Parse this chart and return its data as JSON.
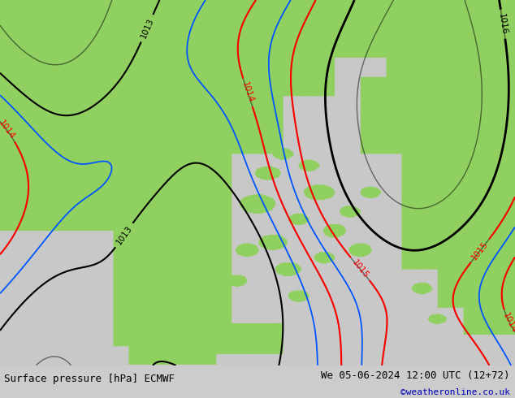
{
  "title_left": "Surface pressure [hPa] ECMWF",
  "title_right": "We 05-06-2024 12:00 UTC (12+72)",
  "credit": "©weatheronline.co.uk",
  "credit_color": "#0000bb",
  "bottom_bar_color": "#cccccc",
  "land_color_r": 144,
  "land_color_g": 208,
  "land_color_b": 96,
  "sea_color_r": 200,
  "sea_color_g": 200,
  "sea_color_b": 200,
  "font_size_bottom": 9,
  "font_size_credit": 8,
  "black_levels": [
    1013,
    1016
  ],
  "red_levels": [
    1014,
    1015
  ],
  "blue_levels": [
    1013,
    1014
  ],
  "extra_black_levels": [
    1013,
    1014
  ]
}
